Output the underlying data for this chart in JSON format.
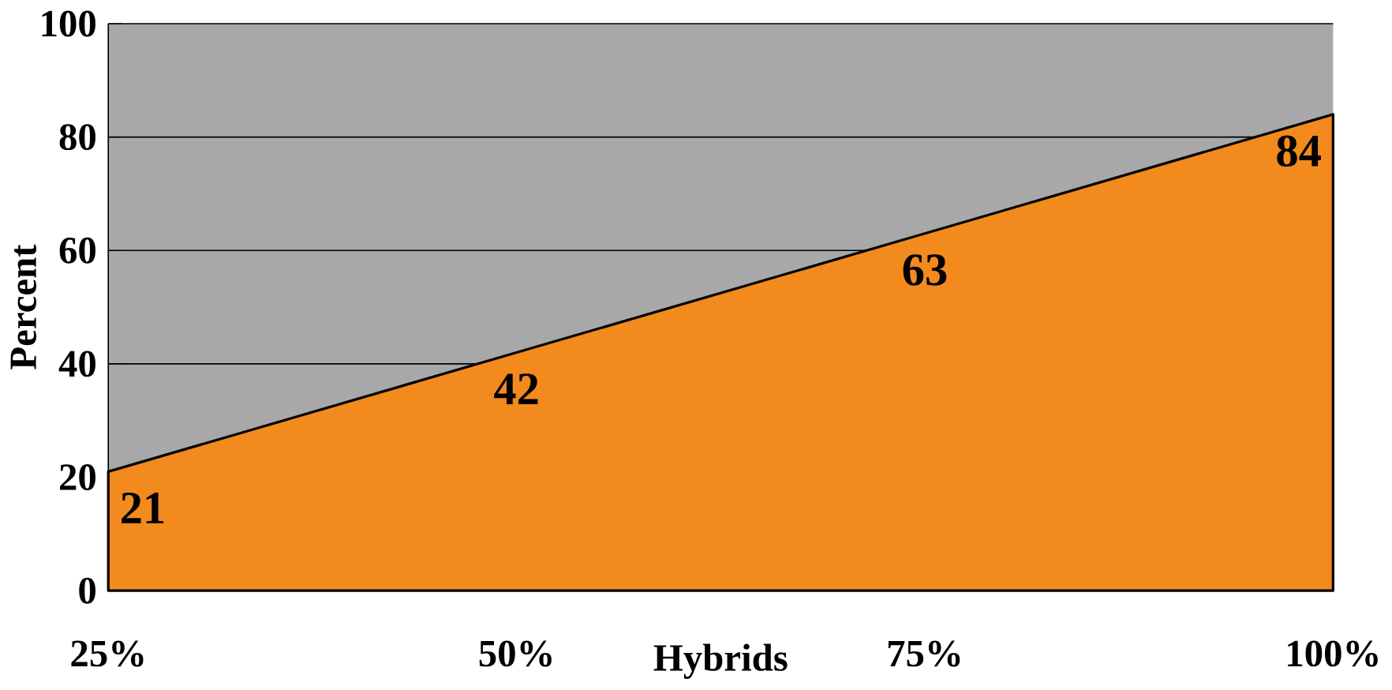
{
  "chart_data": {
    "type": "area",
    "xlabel": "Hybrids",
    "ylabel": "Percent",
    "categories": [
      "25%",
      "50%",
      "75%",
      "100%"
    ],
    "values": [
      21,
      42,
      63,
      84
    ],
    "color": "#f28a1e",
    "ylim": [
      0,
      100
    ],
    "yticks": [
      0,
      20,
      40,
      60,
      80,
      100
    ],
    "grid": "y",
    "data_labels": true
  }
}
